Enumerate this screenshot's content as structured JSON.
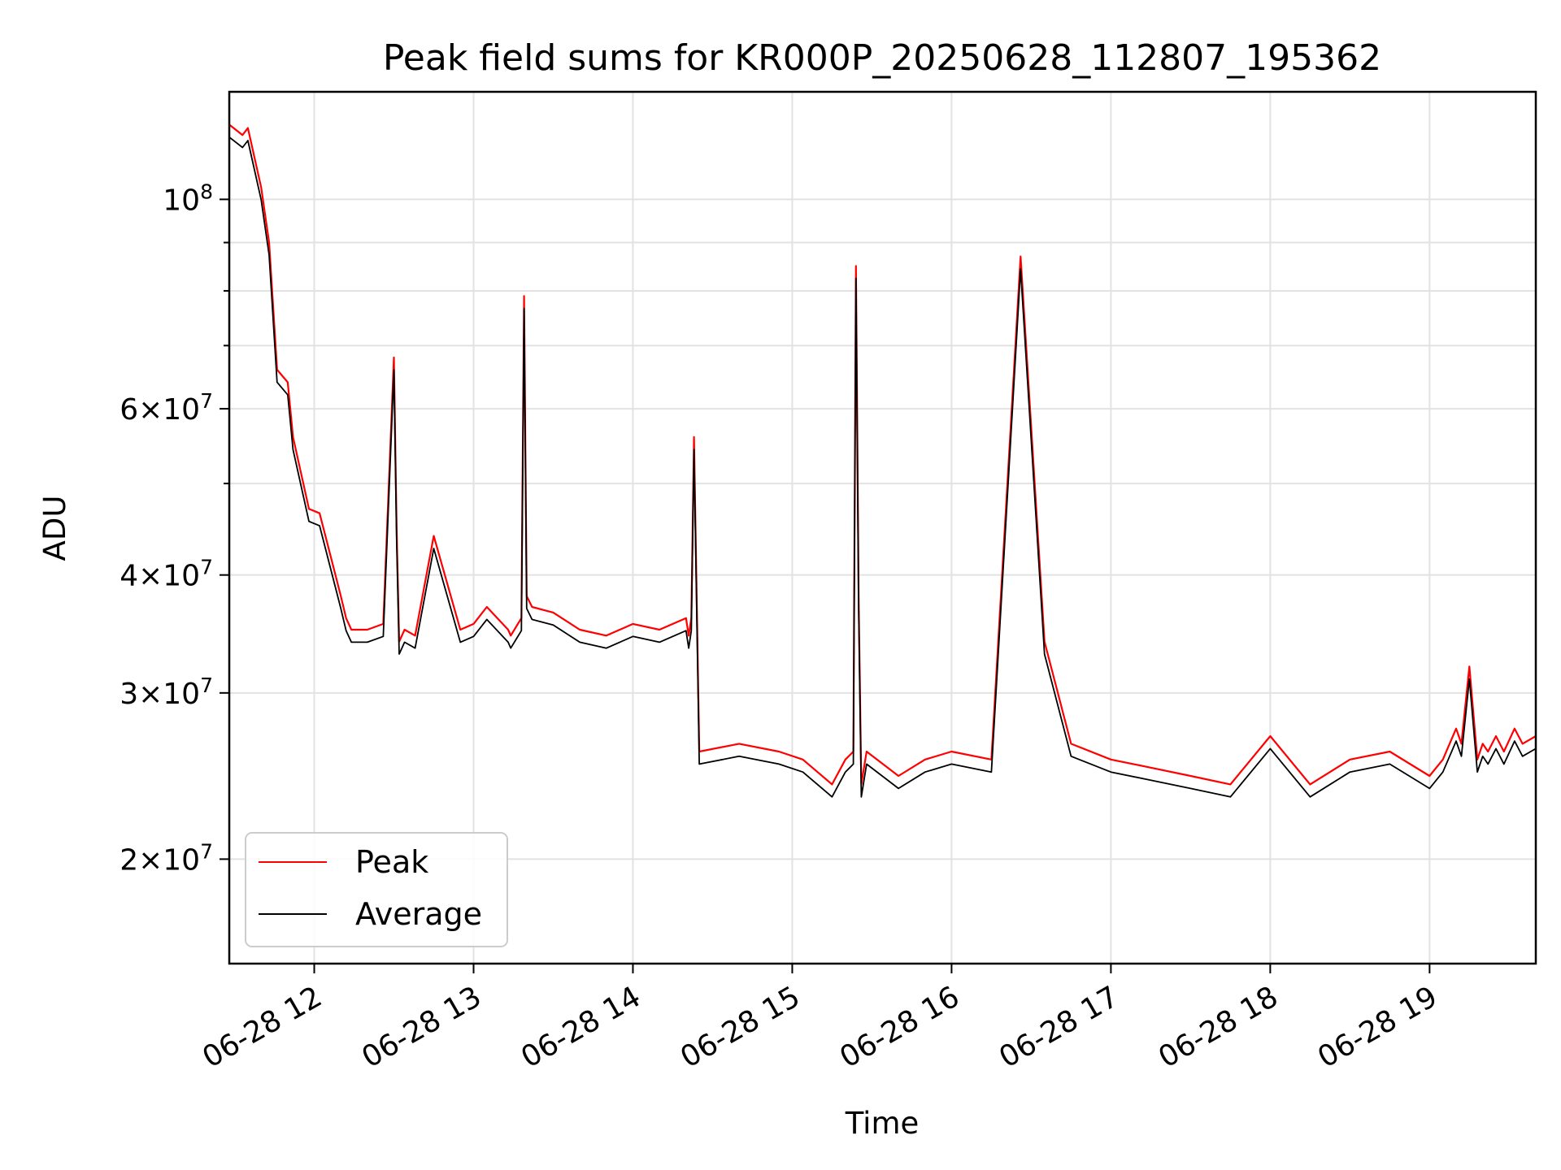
{
  "chart_data": {
    "type": "line",
    "title": "Peak field sums for KR000P_20250628_112807_195362",
    "xlabel": "Time",
    "ylabel": "ADU",
    "y_scale": "log",
    "ylim": [
      15500000,
      130000000
    ],
    "xlim": [
      "2025-06-28 11:28",
      "2025-06-28 19:40"
    ],
    "grid": true,
    "legend_position": "lower-left",
    "x_ticks": [
      {
        "value": "2025-06-28 12:00",
        "label": "06-28 12"
      },
      {
        "value": "2025-06-28 13:00",
        "label": "06-28 13"
      },
      {
        "value": "2025-06-28 14:00",
        "label": "06-28 14"
      },
      {
        "value": "2025-06-28 15:00",
        "label": "06-28 15"
      },
      {
        "value": "2025-06-28 16:00",
        "label": "06-28 16"
      },
      {
        "value": "2025-06-28 17:00",
        "label": "06-28 17"
      },
      {
        "value": "2025-06-28 18:00",
        "label": "06-28 18"
      },
      {
        "value": "2025-06-28 19:00",
        "label": "06-28 19"
      }
    ],
    "y_ticks": [
      {
        "value": 20000000,
        "base": "2×10",
        "exp": "7"
      },
      {
        "value": 30000000,
        "base": "3×10",
        "exp": "7"
      },
      {
        "value": 40000000,
        "base": "4×10",
        "exp": "7"
      },
      {
        "value": 60000000,
        "base": "6×10",
        "exp": "7"
      },
      {
        "value": 100000000,
        "base": "10",
        "exp": "8"
      }
    ],
    "y_minor_ticks": [
      50000000,
      70000000,
      80000000,
      90000000
    ],
    "series": [
      {
        "name": "Peak",
        "color": "#ff0000",
        "x": [
          "2025-06-28 11:28",
          "2025-06-28 11:33",
          "2025-06-28 11:35",
          "2025-06-28 11:40",
          "2025-06-28 11:43",
          "2025-06-28 11:46",
          "2025-06-28 11:50",
          "2025-06-28 11:52",
          "2025-06-28 11:58",
          "2025-06-28 12:02",
          "2025-06-28 12:07",
          "2025-06-28 12:10",
          "2025-06-28 12:11",
          "2025-06-28 12:12",
          "2025-06-28 12:14",
          "2025-06-28 12:20",
          "2025-06-28 12:26",
          "2025-06-28 12:30",
          "2025-06-28 12:31",
          "2025-06-28 12:32",
          "2025-06-28 12:33",
          "2025-06-28 12:34",
          "2025-06-28 12:38",
          "2025-06-28 12:45",
          "2025-06-28 12:55",
          "2025-06-28 13:00",
          "2025-06-28 13:05",
          "2025-06-28 13:13",
          "2025-06-28 13:14",
          "2025-06-28 13:18",
          "2025-06-28 13:19",
          "2025-06-28 13:20",
          "2025-06-28 13:22",
          "2025-06-28 13:30",
          "2025-06-28 13:40",
          "2025-06-28 13:50",
          "2025-06-28 14:00",
          "2025-06-28 14:10",
          "2025-06-28 14:20",
          "2025-06-28 14:21",
          "2025-06-28 14:22",
          "2025-06-28 14:23",
          "2025-06-28 14:25",
          "2025-06-28 14:40",
          "2025-06-28 14:55",
          "2025-06-28 15:04",
          "2025-06-28 15:15",
          "2025-06-28 15:20",
          "2025-06-28 15:23",
          "2025-06-28 15:24",
          "2025-06-28 15:25",
          "2025-06-28 15:26",
          "2025-06-28 15:28",
          "2025-06-28 15:40",
          "2025-06-28 15:50",
          "2025-06-28 16:00",
          "2025-06-28 16:15",
          "2025-06-28 16:26",
          "2025-06-28 16:35",
          "2025-06-28 16:45",
          "2025-06-28 17:00",
          "2025-06-28 17:15",
          "2025-06-28 17:30",
          "2025-06-28 17:45",
          "2025-06-28 18:00",
          "2025-06-28 18:15",
          "2025-06-28 18:30",
          "2025-06-28 18:45",
          "2025-06-28 19:00",
          "2025-06-28 19:05",
          "2025-06-28 19:10",
          "2025-06-28 19:12",
          "2025-06-28 19:15",
          "2025-06-28 19:18",
          "2025-06-28 19:20",
          "2025-06-28 19:22",
          "2025-06-28 19:25",
          "2025-06-28 19:28",
          "2025-06-28 19:32",
          "2025-06-28 19:35",
          "2025-06-28 19:40"
        ],
        "y": [
          120000000,
          117000000,
          119000000,
          103000000,
          90000000,
          66000000,
          64000000,
          56000000,
          47000000,
          46500000,
          41000000,
          38000000,
          37000000,
          36000000,
          35000000,
          35000000,
          35500000,
          68000000,
          45000000,
          34000000,
          34500000,
          35000000,
          34500000,
          44000000,
          35000000,
          35500000,
          37000000,
          35000000,
          34500000,
          36000000,
          79000000,
          38000000,
          37000000,
          36500000,
          35000000,
          34500000,
          35500000,
          35000000,
          36000000,
          34500000,
          36000000,
          56000000,
          26000000,
          26500000,
          26000000,
          25500000,
          24000000,
          25500000,
          26000000,
          85000000,
          38000000,
          24000000,
          26000000,
          24500000,
          25500000,
          26000000,
          25500000,
          87000000,
          34000000,
          26500000,
          25500000,
          25000000,
          24500000,
          24000000,
          27000000,
          24000000,
          25500000,
          26000000,
          24500000,
          25500000,
          27500000,
          26500000,
          32000000,
          25500000,
          26500000,
          26000000,
          27000000,
          26000000,
          27500000,
          26500000,
          27000000
        ]
      },
      {
        "name": "Average",
        "color": "#000000",
        "x": [],
        "y": []
      }
    ]
  },
  "legend": {
    "items": [
      {
        "label": "Peak",
        "color": "#ff0000"
      },
      {
        "label": "Average",
        "color": "#000000"
      }
    ]
  }
}
